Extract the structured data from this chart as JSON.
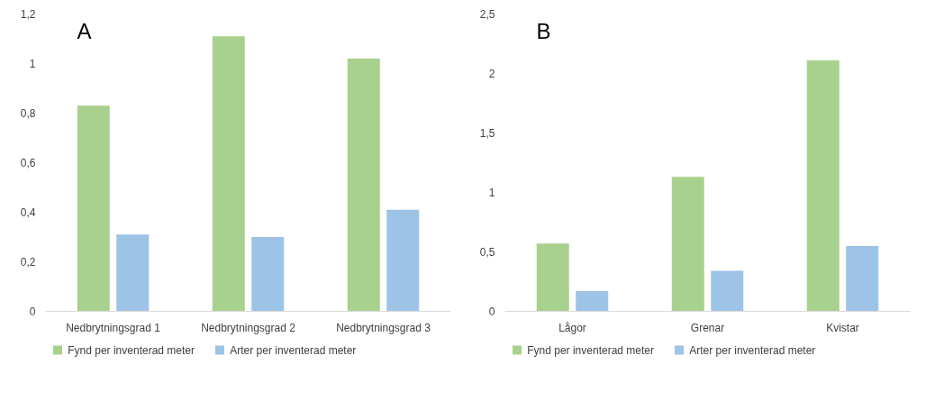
{
  "chart_data": [
    {
      "type": "bar",
      "annotations": [
        "A"
      ],
      "categories": [
        "Nedbrytningsgrad 1",
        "Nedbrytningsgrad 2",
        "Nedbrytningsgrad 3"
      ],
      "series": [
        {
          "name": "Fynd per inventerad meter",
          "color": "#a9d18e",
          "values": [
            0.83,
            1.11,
            1.02
          ]
        },
        {
          "name": "Arter per inventerad meter",
          "color": "#9dc3e6",
          "values": [
            0.31,
            0.3,
            0.41
          ]
        }
      ],
      "ylim": [
        0,
        1.2
      ],
      "yticks": [
        0,
        {
          "value": 0.2,
          "label": "0,2"
        },
        {
          "value": 0.4,
          "label": "0,4"
        },
        {
          "value": 0.6,
          "label": "0,6"
        },
        {
          "value": 0.8,
          "label": "0,8"
        },
        1,
        {
          "value": 1.2,
          "label": "1,2"
        }
      ],
      "grid": false,
      "legend": "bottom"
    },
    {
      "type": "bar",
      "annotations": [
        "B"
      ],
      "categories": [
        "Lågor",
        "Grenar",
        "Kvistar"
      ],
      "series": [
        {
          "name": "Fynd per inventerad meter",
          "color": "#a9d18e",
          "values": [
            0.57,
            1.13,
            2.11
          ]
        },
        {
          "name": "Arter per inventerad meter",
          "color": "#9dc3e6",
          "values": [
            0.17,
            0.34,
            0.55
          ]
        }
      ],
      "ylim": [
        0,
        2.5
      ],
      "yticks": [
        0,
        {
          "value": 0.5,
          "label": "0,5"
        },
        1,
        {
          "value": 1.5,
          "label": "1,5"
        },
        2,
        {
          "value": 2.5,
          "label": "2,5"
        }
      ],
      "grid": false,
      "legend": "bottom"
    }
  ]
}
